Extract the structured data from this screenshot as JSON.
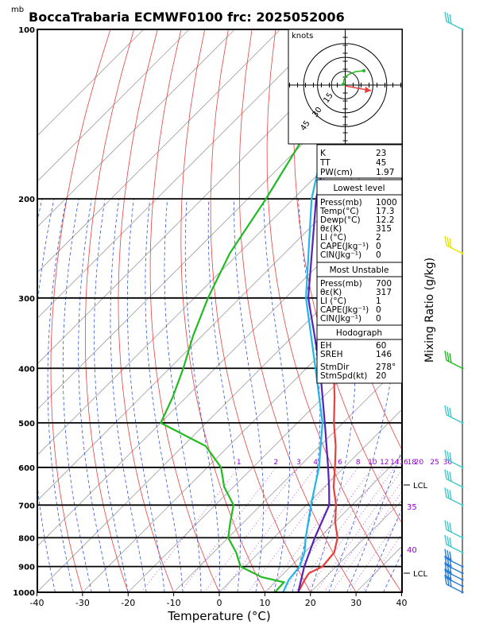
{
  "title": "BoccaTrabaria ECMWF0100 frc: 2025052006",
  "units": {
    "pressure": "mb",
    "hodograph": "knots"
  },
  "axis": {
    "xlabel": "Temperature (°C)",
    "mixing_ratio_label": "Mixing Ratio (g/kg)"
  },
  "chart_data": {
    "type": "line",
    "title": "BoccaTrabaria ECMWF0100 frc: 2025052006",
    "xlabel": "Temperature (°C)",
    "ylabel": "mb",
    "x_ticks": [
      -40,
      -30,
      -20,
      -10,
      0,
      10,
      20,
      30,
      40
    ],
    "y_ticks": [
      100,
      200,
      300,
      400,
      500,
      600,
      700,
      800,
      900,
      1000
    ],
    "xlim": [
      -40,
      40
    ],
    "ylim": [
      1000,
      100
    ],
    "y_scale": "log",
    "skew": "isotherms skewed 45°",
    "mixing_ratio_lines": [
      "1",
      "2",
      "3",
      "4",
      "6",
      "8",
      "10",
      "12",
      "14",
      "16",
      "18",
      "20",
      "25",
      "30"
    ],
    "theta_e_labels": [
      "35",
      "40"
    ],
    "lcl_labels": [
      "LCL",
      "LCL"
    ],
    "series": [
      {
        "name": "temperature",
        "color": "#e8403a",
        "p": [
          1000,
          950,
          925,
          900,
          850,
          800,
          750,
          700,
          650,
          600,
          550,
          500,
          450,
          400,
          350,
          300,
          250,
          200,
          150,
          100
        ],
        "t": [
          17.3,
          16.0,
          15.5,
          17.0,
          16.5,
          14.0,
          10.0,
          6.5,
          2.0,
          -2.0,
          -6.5,
          -12.0,
          -17.5,
          -24.0,
          -31.5,
          -40.0,
          -52.0,
          -50.0,
          -40.0,
          -30.0
        ]
      },
      {
        "name": "dewpoint",
        "color": "#22bb22",
        "p": [
          1000,
          960,
          940,
          900,
          850,
          800,
          750,
          700,
          650,
          600,
          550,
          500,
          450,
          400,
          350,
          300,
          250,
          200,
          150,
          100
        ],
        "t": [
          12.2,
          12.0,
          6.0,
          -1.0,
          -5.0,
          -10.0,
          -13.0,
          -16.0,
          -22.0,
          -27.0,
          -35.0,
          -50.0,
          -53.0,
          -57.0,
          -62.0,
          -67.0,
          -72.0,
          -76.0,
          -82.0,
          -90.0
        ]
      },
      {
        "name": "parcel",
        "color": "#5522bb",
        "p": [
          1000,
          900,
          800,
          700,
          650,
          600,
          500,
          400,
          300,
          200,
          150,
          130
        ],
        "t": [
          17.3,
          13.0,
          9.0,
          5.0,
          1.0,
          -3.5,
          -14.0,
          -27.0,
          -45.0,
          -65.0,
          -77.0,
          -82.0
        ]
      },
      {
        "name": "wetbulb",
        "color": "#22b5e8",
        "p": [
          1000,
          950,
          900,
          850,
          800,
          700,
          600,
          500,
          400,
          300,
          200,
          150,
          130
        ],
        "t": [
          14.0,
          12.5,
          12.0,
          10.0,
          7.0,
          1.0,
          -5.5,
          -14.5,
          -28.0,
          -45.5,
          -66.0,
          -78.0,
          -83.0
        ]
      }
    ]
  },
  "hodograph": {
    "label": "knots",
    "ring_labels": [
      "15",
      "30",
      "45"
    ],
    "line_color": "#22bb22",
    "storm_color": "#e8403a",
    "storm_dir": 278,
    "storm_speed": 20
  },
  "indices": [
    {
      "label": "K",
      "value": "23"
    },
    {
      "label": "TT",
      "value": "45"
    },
    {
      "label": "PW(cm)",
      "value": "1.97"
    }
  ],
  "lowest_level": {
    "heading": "Lowest level",
    "rows": [
      {
        "label": "Press(mb)",
        "value": "1000"
      },
      {
        "label": "Temp(°C)",
        "value": "17.3"
      },
      {
        "label": "Dewp(°C)",
        "value": "12.2"
      },
      {
        "label": "θε(K)",
        "value": "315"
      },
      {
        "label": "LI (°C)",
        "value": "2"
      },
      {
        "label": "CAPE(Jkg⁻¹)",
        "value": "0"
      },
      {
        "label": "CIN(Jkg⁻¹)",
        "value": "0"
      }
    ]
  },
  "most_unstable": {
    "heading": "Most Unstable",
    "rows": [
      {
        "label": "Press(mb)",
        "value": "700"
      },
      {
        "label": "θε(K)",
        "value": "317"
      },
      {
        "label": "LI (°C)",
        "value": "1"
      },
      {
        "label": "CAPE(Jkg⁻¹)",
        "value": "0"
      },
      {
        "label": "CIN(Jkg⁻¹)",
        "value": "0"
      }
    ]
  },
  "hodograph_box": {
    "heading": "Hodograph",
    "rows": [
      {
        "label": "EH",
        "value": "60"
      },
      {
        "label": "SREH",
        "value": "146"
      },
      {
        "label": "StmDir",
        "value": "278°"
      },
      {
        "label": "StmSpd(kt)",
        "value": "20"
      }
    ]
  },
  "wind_barbs": {
    "levels": [
      1000,
      975,
      950,
      925,
      900,
      850,
      800,
      700,
      650,
      600,
      500,
      400,
      250,
      100
    ],
    "colors": [
      "#2a7bd4",
      "#2a7bd4",
      "#2a7bd4",
      "#2a7bd4",
      "#2a7bd4",
      "#40c8c8",
      "#40c8c8",
      "#40c8c8",
      "#40c8c8",
      "#40c8c8",
      "#40c8c8",
      "#22bb22",
      "#e6e600",
      "#40c8c8"
    ]
  }
}
